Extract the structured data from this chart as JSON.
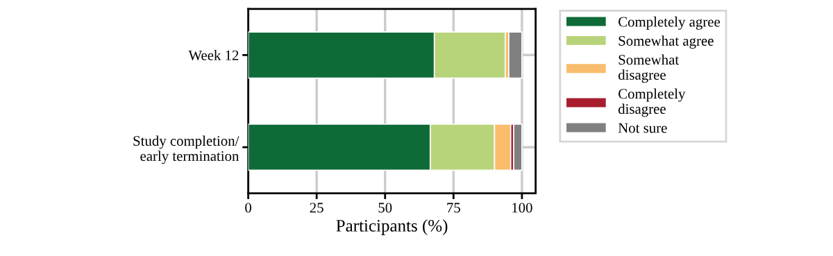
{
  "chart_data": {
    "type": "bar",
    "orientation": "horizontal",
    "stacked": true,
    "xlabel": "Participants (%)",
    "categories": [
      "Week 12",
      "Study completion/\nearly termination"
    ],
    "series": [
      {
        "name": "Completely agree",
        "color": "#0e6b38",
        "values": [
          68.0,
          66.5
        ]
      },
      {
        "name": "Somewhat agree",
        "color": "#b8d47a",
        "values": [
          25.9,
          23.5
        ]
      },
      {
        "name": "Somewhat\ndisagree",
        "color": "#f9bd6d",
        "values": [
          1.3,
          5.9
        ]
      },
      {
        "name": "Completely\ndisagree",
        "color": "#a81e2f",
        "values": [
          0,
          1.1
        ]
      },
      {
        "name": "Not sure",
        "color": "#808080",
        "values": [
          4.8,
          3.0
        ]
      }
    ],
    "xlim": [
      0,
      105
    ],
    "xticks": [
      0,
      25,
      50,
      75,
      100
    ],
    "grid": true,
    "legend": "right"
  }
}
